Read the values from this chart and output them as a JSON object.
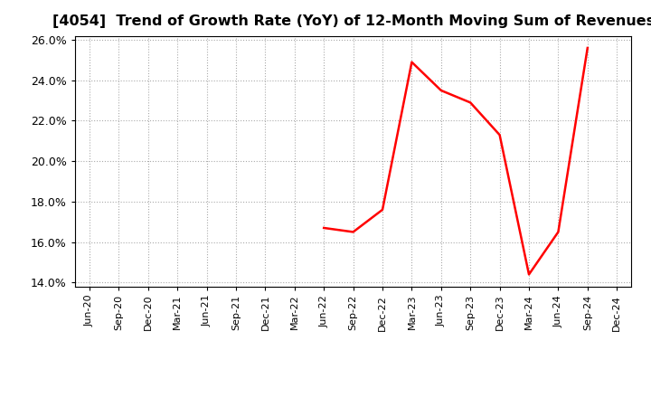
{
  "title": "[4054]  Trend of Growth Rate (YoY) of 12-Month Moving Sum of Revenues",
  "title_fontsize": 11.5,
  "title_fontweight": "bold",
  "line_color": "#FF0000",
  "line_width": 1.8,
  "background_color": "#FFFFFF",
  "plot_bg_color": "#FFFFFF",
  "grid_color": "#AAAAAA",
  "ylim": [
    0.138,
    0.262
  ],
  "yticks": [
    0.14,
    0.16,
    0.18,
    0.2,
    0.22,
    0.24,
    0.26
  ],
  "data_points": {
    "Jun-22": 0.167,
    "Sep-22": 0.165,
    "Dec-22": 0.176,
    "Mar-23": 0.249,
    "Jun-23": 0.235,
    "Sep-23": 0.229,
    "Dec-23": 0.213,
    "Mar-24": 0.144,
    "Jun-24": 0.165,
    "Sep-24": 0.256
  },
  "x_tick_labels": [
    "Jun-20",
    "Sep-20",
    "Dec-20",
    "Mar-21",
    "Jun-21",
    "Sep-21",
    "Dec-21",
    "Mar-22",
    "Jun-22",
    "Sep-22",
    "Dec-22",
    "Mar-23",
    "Jun-23",
    "Sep-23",
    "Dec-23",
    "Mar-24",
    "Jun-24",
    "Sep-24",
    "Dec-24"
  ]
}
